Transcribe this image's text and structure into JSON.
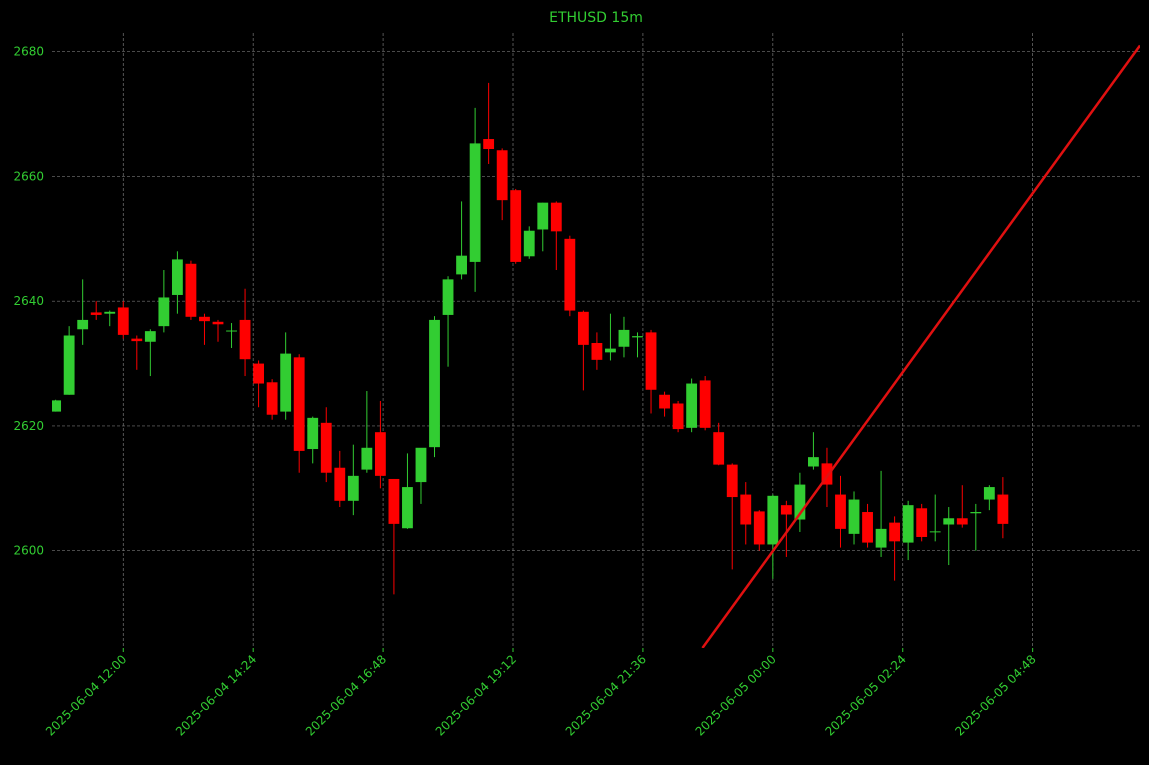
{
  "chart_data": {
    "type": "candlestick",
    "title": "ETHUSD 15m",
    "x": [
      "2025-06-04 10:45",
      "2025-06-04 11:00",
      "2025-06-04 11:15",
      "2025-06-04 11:30",
      "2025-06-04 11:45",
      "2025-06-04 12:00",
      "2025-06-04 12:15",
      "2025-06-04 12:30",
      "2025-06-04 12:45",
      "2025-06-04 13:00",
      "2025-06-04 13:15",
      "2025-06-04 13:30",
      "2025-06-04 13:45",
      "2025-06-04 14:00",
      "2025-06-04 14:15",
      "2025-06-04 14:30",
      "2025-06-04 14:45",
      "2025-06-04 15:00",
      "2025-06-04 15:15",
      "2025-06-04 15:30",
      "2025-06-04 15:45",
      "2025-06-04 16:00",
      "2025-06-04 16:15",
      "2025-06-04 16:30",
      "2025-06-04 16:45",
      "2025-06-04 17:00",
      "2025-06-04 17:15",
      "2025-06-04 17:30",
      "2025-06-04 17:45",
      "2025-06-04 18:00",
      "2025-06-04 18:15",
      "2025-06-04 18:30",
      "2025-06-04 18:45",
      "2025-06-04 19:00",
      "2025-06-04 19:15",
      "2025-06-04 19:30",
      "2025-06-04 19:45",
      "2025-06-04 20:00",
      "2025-06-04 20:15",
      "2025-06-04 20:30",
      "2025-06-04 20:45",
      "2025-06-04 21:00",
      "2025-06-04 21:15",
      "2025-06-04 21:30",
      "2025-06-04 21:45",
      "2025-06-04 22:00",
      "2025-06-04 22:15",
      "2025-06-04 22:30",
      "2025-06-04 22:45",
      "2025-06-04 23:00",
      "2025-06-04 23:15",
      "2025-06-04 23:30",
      "2025-06-04 23:45",
      "2025-06-05 00:00",
      "2025-06-05 00:15",
      "2025-06-05 00:30",
      "2025-06-05 00:45",
      "2025-06-05 01:00",
      "2025-06-05 01:15",
      "2025-06-05 01:30",
      "2025-06-05 01:45",
      "2025-06-05 02:00",
      "2025-06-05 02:15",
      "2025-06-05 02:30",
      "2025-06-05 02:45",
      "2025-06-05 03:00",
      "2025-06-05 03:15",
      "2025-06-05 03:30",
      "2025-06-05 03:45",
      "2025-06-05 04:00",
      "2025-06-05 04:15"
    ],
    "open": [
      2622.3,
      2625,
      2635.5,
      2638.2,
      2638,
      2639,
      2634,
      2633.5,
      2636,
      2641,
      2646,
      2637.5,
      2636.7,
      2635.2,
      2637,
      2630,
      2627,
      2622.3,
      2631,
      2616.3,
      2620.5,
      2613.3,
      2608,
      2613,
      2619,
      2611.5,
      2603.6,
      2611,
      2616.6,
      2637.8,
      2644.3,
      2646.3,
      2666,
      2664.2,
      2657.8,
      2647.2,
      2651.5,
      2655.8,
      2650,
      2638.3,
      2633.3,
      2631.8,
      2632.7,
      2634.2,
      2635,
      2625,
      2623.6,
      2619.7,
      2627.3,
      2619,
      2613.8,
      2609,
      2606.3,
      2601,
      2607.3,
      2605,
      2613.5,
      2614,
      2609,
      2602.7,
      2606.2,
      2600.5,
      2604.5,
      2601.3,
      2606.8,
      2603,
      2604.2,
      2605.2,
      2606,
      2608.2,
      2609
    ],
    "high": [
      2624.2,
      2636,
      2643.5,
      2640,
      2638.5,
      2640,
      2634.5,
      2635.5,
      2645,
      2648,
      2646.5,
      2638,
      2637,
      2636.5,
      2642,
      2630.5,
      2627.5,
      2635,
      2631.5,
      2621.5,
      2623,
      2616,
      2617,
      2625.6,
      2624,
      2611.5,
      2615.6,
      2616.4,
      2637.6,
      2644,
      2656,
      2671,
      2675,
      2664.5,
      2658,
      2652,
      2655.8,
      2656,
      2650.5,
      2638.5,
      2635,
      2638,
      2637.5,
      2635,
      2635.4,
      2625.5,
      2624,
      2627.6,
      2628,
      2620.5,
      2614,
      2611,
      2606.5,
      2609,
      2608,
      2612.5,
      2619,
      2616.5,
      2612,
      2609.5,
      2607.5,
      2612.8,
      2605.5,
      2608,
      2607.5,
      2609,
      2607,
      2610.5,
      2607.5,
      2610.5,
      2611.8
    ],
    "low": [
      2622.3,
      2625,
      2633,
      2637,
      2636,
      2634,
      2629,
      2628,
      2635,
      2638,
      2637,
      2633,
      2633.5,
      2632.5,
      2628,
      2623,
      2621,
      2621,
      2612.5,
      2614,
      2611,
      2607,
      2605.7,
      2612.5,
      2610,
      2593,
      2603.5,
      2607.5,
      2615,
      2629.5,
      2643.5,
      2641.5,
      2662,
      2653,
      2646,
      2646.8,
      2648,
      2645,
      2637.6,
      2625.7,
      2629,
      2630.5,
      2631,
      2631,
      2622,
      2621.5,
      2619,
      2619,
      2619.3,
      2613.7,
      2597,
      2601,
      2600,
      2595.5,
      2599,
      2603,
      2613,
      2607,
      2600.5,
      2601,
      2600.5,
      2599,
      2595.2,
      2598.5,
      2601.5,
      2601.5,
      2597.7,
      2603.7,
      2600,
      2606.5,
      2602
    ],
    "close": [
      2624.1,
      2634.5,
      2637,
      2637.8,
      2638.3,
      2634.6,
      2633.6,
      2635.2,
      2640.6,
      2646.7,
      2637.5,
      2636.8,
      2636.3,
      2635.3,
      2630.7,
      2626.8,
      2621.8,
      2631.6,
      2616,
      2621.3,
      2612.5,
      2608,
      2612,
      2616.5,
      2612,
      2604.3,
      2610.2,
      2616.5,
      2637,
      2643.5,
      2647.3,
      2665.3,
      2664.4,
      2656.2,
      2646.3,
      2651.3,
      2655.8,
      2651.2,
      2638.5,
      2633,
      2630.6,
      2632.4,
      2635.4,
      2634.4,
      2625.8,
      2622.8,
      2619.5,
      2626.8,
      2619.7,
      2613.8,
      2608.6,
      2604.2,
      2601,
      2608.8,
      2605.8,
      2610.6,
      2615,
      2610.6,
      2603.5,
      2608.2,
      2601.3,
      2603.5,
      2601.5,
      2607.3,
      2602.2,
      2603.1,
      2605.2,
      2604.2,
      2606.2,
      2610.2,
      2604.3
    ],
    "up_color": "#32cd32",
    "down_color": "#ff0000",
    "trendline": {
      "x": [
        "2025-06-04 22:42",
        "2025-06-05 06:47"
      ],
      "y": [
        2584.4,
        2681.0
      ],
      "color": "#e01010"
    },
    "xlim": [
      "2025-06-04 10:41",
      "2025-06-05 06:47"
    ],
    "xticks": [
      "2025-06-04 12:00",
      "2025-06-04 14:24",
      "2025-06-04 16:48",
      "2025-06-04 19:12",
      "2025-06-04 21:36",
      "2025-06-05 00:00",
      "2025-06-05 02:24",
      "2025-06-05 04:48"
    ],
    "ylim": [
      2584.4,
      2683.0
    ],
    "yticks": [
      2600,
      2620,
      2640,
      2660,
      2680
    ],
    "grid": true
  }
}
